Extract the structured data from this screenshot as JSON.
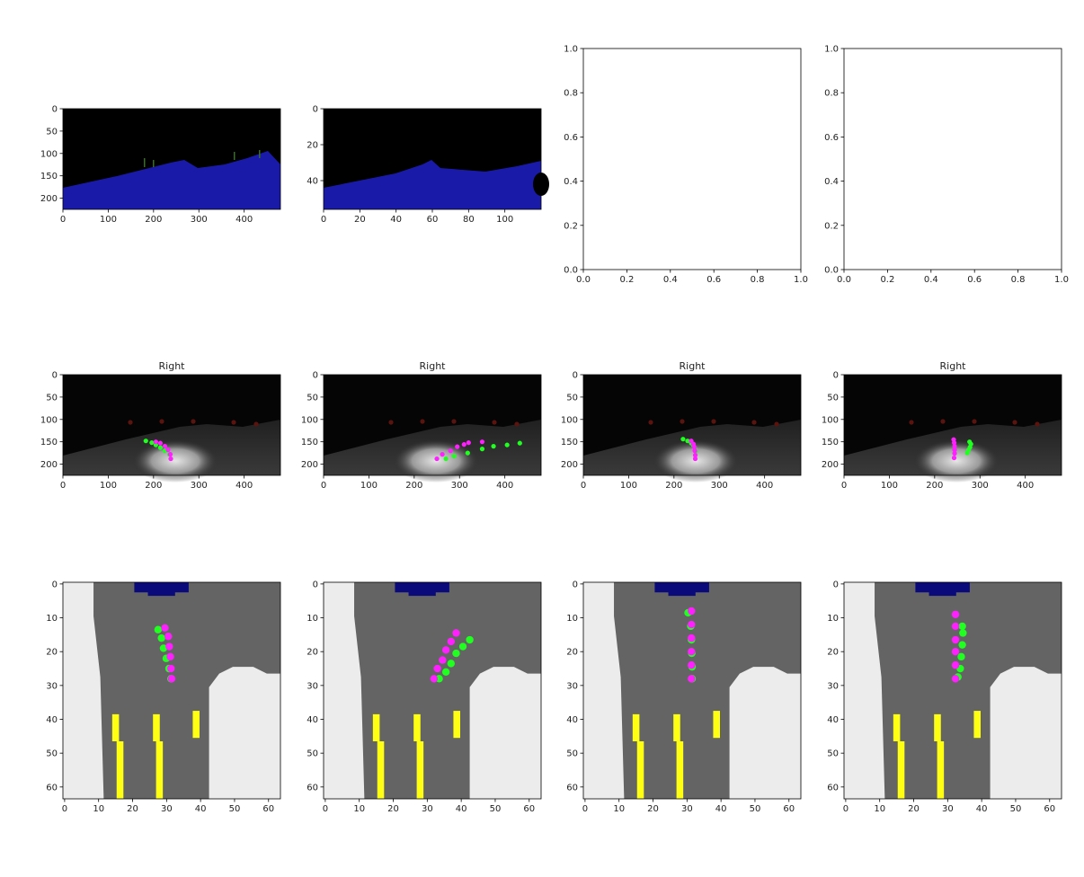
{
  "figure": {
    "row1_title": "",
    "row2_titles": [
      "Right",
      "Right",
      "Right",
      "Right"
    ]
  },
  "colors": {
    "black": "#000000",
    "road_blue": "#1a1aa8",
    "sky_dark": "#050505",
    "grass_green": "#3c6a2a",
    "green_pts": "#20ff20",
    "magenta_pts": "#ff20ff",
    "seg_gray": "#646464",
    "seg_light": "#ececec",
    "seg_navy": "#0a0a7a",
    "seg_yellow": "#ffff14"
  },
  "panels": {
    "row1": [
      {
        "name": "seg-image-1",
        "xticks": [
          "0",
          "100",
          "200",
          "300",
          "400"
        ],
        "yticks": [
          "0",
          "50",
          "100",
          "150",
          "200"
        ]
      },
      {
        "name": "seg-image-2",
        "xticks": [
          "0",
          "20",
          "40",
          "60",
          "80",
          "100"
        ],
        "yticks": [
          "0",
          "20",
          "40"
        ]
      },
      {
        "name": "empty-axes-1",
        "xticks": [
          "0.0",
          "0.2",
          "0.4",
          "0.6",
          "0.8",
          "1.0"
        ],
        "yticks": [
          "0.0",
          "0.2",
          "0.4",
          "0.6",
          "0.8",
          "1.0"
        ]
      },
      {
        "name": "empty-axes-2",
        "xticks": [
          "0.0",
          "0.2",
          "0.4",
          "0.6",
          "0.8",
          "1.0"
        ],
        "yticks": [
          "0.0",
          "0.2",
          "0.4",
          "0.6",
          "0.8",
          "1.0"
        ]
      }
    ],
    "row2": [
      {
        "xticks": [
          "0",
          "100",
          "200",
          "300",
          "400"
        ],
        "yticks": [
          "0",
          "50",
          "100",
          "150",
          "200"
        ]
      },
      {
        "xticks": [
          "0",
          "100",
          "200",
          "300",
          "400"
        ],
        "yticks": [
          "0",
          "50",
          "100",
          "150",
          "200"
        ]
      },
      {
        "xticks": [
          "0",
          "100",
          "200",
          "300",
          "400"
        ],
        "yticks": [
          "0",
          "50",
          "100",
          "150",
          "200"
        ]
      },
      {
        "xticks": [
          "0",
          "100",
          "200",
          "300",
          "400"
        ],
        "yticks": [
          "0",
          "50",
          "100",
          "150",
          "200"
        ]
      }
    ],
    "row3": [
      {
        "xticks": [
          "0",
          "10",
          "20",
          "30",
          "40",
          "50",
          "60"
        ],
        "yticks": [
          "0",
          "10",
          "20",
          "30",
          "40",
          "50",
          "60"
        ]
      },
      {
        "xticks": [
          "0",
          "10",
          "20",
          "30",
          "40",
          "50",
          "60"
        ],
        "yticks": [
          "0",
          "10",
          "20",
          "30",
          "40",
          "50",
          "60"
        ]
      },
      {
        "xticks": [
          "0",
          "10",
          "20",
          "30",
          "40",
          "50",
          "60"
        ],
        "yticks": [
          "0",
          "10",
          "20",
          "30",
          "40",
          "50",
          "60"
        ]
      },
      {
        "xticks": [
          "0",
          "10",
          "20",
          "30",
          "40",
          "50",
          "60"
        ],
        "yticks": [
          "0",
          "10",
          "20",
          "30",
          "40",
          "50",
          "60"
        ]
      }
    ]
  },
  "trajectories": {
    "row2": [
      {
        "green": [
          [
            183,
            148
          ],
          [
            196,
            152
          ],
          [
            205,
            157
          ],
          [
            215,
            163
          ],
          [
            225,
            170
          ],
          [
            235,
            178
          ]
        ],
        "magenta": [
          [
            205,
            150
          ],
          [
            215,
            153
          ],
          [
            225,
            160
          ],
          [
            232,
            168
          ],
          [
            237,
            178
          ],
          [
            238,
            188
          ]
        ]
      },
      {
        "green": [
          [
            270,
            188
          ],
          [
            288,
            182
          ],
          [
            318,
            175
          ],
          [
            350,
            166
          ],
          [
            375,
            160
          ],
          [
            405,
            157
          ],
          [
            433,
            153
          ]
        ],
        "magenta": [
          [
            250,
            188
          ],
          [
            262,
            178
          ],
          [
            280,
            170
          ],
          [
            295,
            161
          ],
          [
            310,
            156
          ],
          [
            320,
            152
          ],
          [
            350,
            150
          ]
        ]
      },
      {
        "green": [
          [
            220,
            144
          ],
          [
            230,
            148
          ],
          [
            238,
            153
          ],
          [
            243,
            158
          ],
          [
            246,
            165
          ],
          [
            248,
            172
          ]
        ],
        "magenta": [
          [
            238,
            148
          ],
          [
            243,
            155
          ],
          [
            245,
            162
          ],
          [
            246,
            170
          ],
          [
            247,
            180
          ],
          [
            247,
            188
          ]
        ]
      },
      {
        "green": [
          [
            277,
            150
          ],
          [
            280,
            155
          ],
          [
            278,
            162
          ],
          [
            275,
            168
          ],
          [
            272,
            175
          ]
        ],
        "magenta": [
          [
            242,
            145
          ],
          [
            243,
            152
          ],
          [
            244,
            160
          ],
          [
            244,
            168
          ],
          [
            244,
            176
          ],
          [
            243,
            186
          ]
        ]
      }
    ],
    "row3": [
      {
        "green": [
          [
            28.0,
            14.0
          ],
          [
            29.0,
            16.5
          ],
          [
            29.6,
            19.5
          ],
          [
            30.4,
            22.5
          ],
          [
            31.2,
            25.5
          ],
          [
            31.8,
            28.5
          ]
        ],
        "magenta": [
          [
            30.0,
            13.5
          ],
          [
            31.0,
            16.0
          ],
          [
            31.3,
            19.0
          ],
          [
            31.6,
            22.0
          ],
          [
            31.8,
            25.5
          ],
          [
            32.0,
            28.5
          ]
        ]
      },
      {
        "green": [
          [
            43.0,
            17.0
          ],
          [
            41.0,
            19.0
          ],
          [
            39.0,
            21.0
          ],
          [
            37.5,
            24.0
          ],
          [
            36.0,
            26.5
          ],
          [
            34.0,
            28.5
          ]
        ],
        "magenta": [
          [
            39.0,
            15.0
          ],
          [
            37.5,
            17.5
          ],
          [
            36.0,
            20.0
          ],
          [
            35.0,
            23.0
          ],
          [
            33.5,
            25.5
          ],
          [
            32.5,
            28.5
          ]
        ]
      },
      {
        "green": [
          [
            30.8,
            9.0
          ],
          [
            31.6,
            13.0
          ],
          [
            31.8,
            17.0
          ],
          [
            31.9,
            21.0
          ],
          [
            32.0,
            25.0
          ],
          [
            32.0,
            28.5
          ]
        ],
        "magenta": [
          [
            31.8,
            8.5
          ],
          [
            31.8,
            12.5
          ],
          [
            31.8,
            16.5
          ],
          [
            31.8,
            20.5
          ],
          [
            31.8,
            24.5
          ],
          [
            31.8,
            28.5
          ]
        ]
      },
      {
        "green": [
          [
            34.8,
            13.0
          ],
          [
            35.0,
            15.0
          ],
          [
            34.8,
            18.5
          ],
          [
            34.5,
            22.0
          ],
          [
            34.2,
            25.5
          ],
          [
            33.5,
            28.0
          ]
        ],
        "magenta": [
          [
            32.8,
            9.5
          ],
          [
            32.8,
            13.0
          ],
          [
            32.8,
            17.0
          ],
          [
            32.8,
            20.5
          ],
          [
            32.8,
            24.5
          ],
          [
            32.8,
            28.5
          ]
        ]
      }
    ]
  }
}
